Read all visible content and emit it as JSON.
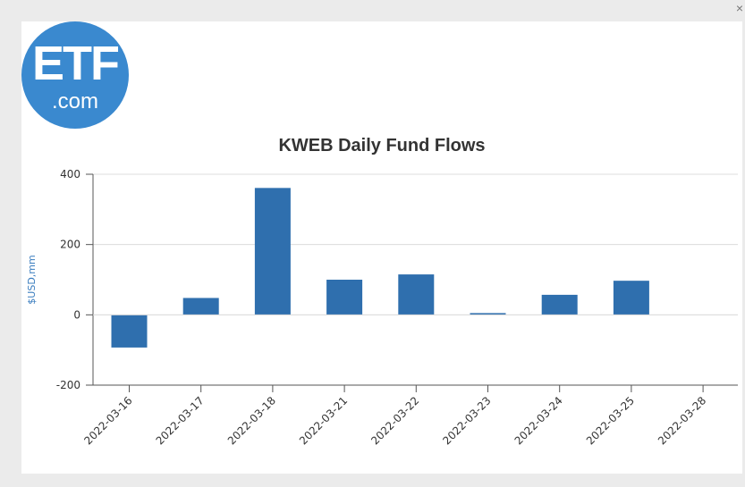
{
  "logo": {
    "main": "ETF",
    "sub": ".com"
  },
  "close_label": "×",
  "chart_data": {
    "type": "bar",
    "title": "KWEB Daily Fund Flows",
    "xlabel": "",
    "ylabel": "$USD,mm",
    "ylim": [
      -200,
      400
    ],
    "yticks": [
      -200,
      0,
      200,
      400
    ],
    "categories": [
      "2022-03-16",
      "2022-03-17",
      "2022-03-18",
      "2022-03-21",
      "2022-03-22",
      "2022-03-23",
      "2022-03-24",
      "2022-03-25",
      "2022-03-28"
    ],
    "values": [
      -93,
      48,
      361,
      100,
      115,
      5,
      57,
      97,
      0
    ],
    "bar_color": "#2f6fae",
    "grid": true
  }
}
